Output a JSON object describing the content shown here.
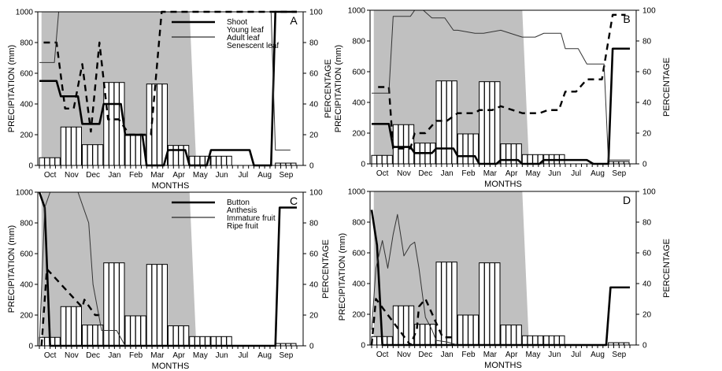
{
  "colors": {
    "shade": "#c0c0c0",
    "ink": "#000000",
    "bar_fill": "#ffffff"
  },
  "chart_data": [
    {
      "type": "bar+line",
      "panel": "A",
      "xlabel": "MONTHS",
      "ylabel_left": "PRECIPITATION (mm)",
      "ylabel_right": "PERCENTAGE",
      "ylabel_right_overlay": "PRECIPITATION (mm)",
      "ylim_left": [
        0,
        1000
      ],
      "ylim_right": [
        0,
        100
      ],
      "yticks_left": [
        "0",
        "200",
        "400",
        "600",
        "800",
        "1000"
      ],
      "yticks_right": [
        "0",
        "20",
        "40",
        "60",
        "80",
        "100"
      ],
      "months": [
        "Oct",
        "Nov",
        "Dec",
        "Jan",
        "Feb",
        "Mar",
        "Apr",
        "May",
        "Jun",
        "Jul",
        "Aug",
        "Sep"
      ],
      "precipitation": [
        50,
        250,
        135,
        540,
        195,
        530,
        130,
        60,
        60,
        0,
        0,
        15
      ],
      "rainy_season_shading": {
        "start": 0.1,
        "end": 7.0
      },
      "legend": [
        "Shoot",
        "Young leaf",
        "Adult leaf",
        "Senescent leaf"
      ],
      "legend_position": "top-right",
      "series": [
        {
          "name": "Shoot",
          "style": "thick",
          "x": [
            0,
            0.8,
            1.0,
            1.8,
            2.0,
            2.8,
            3.0,
            3.8,
            4.0,
            4.8,
            5.0,
            5.8,
            6.0,
            6.8,
            7.0,
            7.8,
            8.0,
            9.8,
            10.0,
            10.8,
            11.0,
            12.0
          ],
          "y": [
            55,
            55,
            45,
            45,
            27,
            27,
            40,
            40,
            20,
            20,
            0,
            0,
            10,
            10,
            0,
            0,
            10,
            10,
            0,
            0,
            100,
            100
          ]
        },
        {
          "name": "Young leaf",
          "style": "dashed",
          "x": [
            0.2,
            0.8,
            1.2,
            1.6,
            2.0,
            2.4,
            2.8,
            3.2,
            3.7,
            4.2,
            4.8,
            5.2,
            5.7,
            12.0
          ],
          "y": [
            80,
            80,
            37,
            37,
            66,
            22,
            80,
            30,
            30,
            20,
            20,
            20,
            100,
            100
          ]
        },
        {
          "name": "Adult leaf",
          "style": "thin",
          "x": [
            0,
            0.7,
            0.9,
            10.8,
            11.0,
            11.7
          ],
          "y": [
            67,
            67,
            100,
            100,
            10,
            10
          ]
        },
        {
          "name": "Senescent leaf",
          "style": "thin-gray",
          "x": [],
          "y": []
        }
      ]
    },
    {
      "type": "bar+line",
      "panel": "B",
      "xlabel": "MONTHS",
      "ylabel_right": "PERCENTAGE",
      "ylim_left": [
        0,
        1000
      ],
      "ylim_right": [
        0,
        100
      ],
      "yticks_left": [
        "0",
        "200",
        "400",
        "600",
        "800",
        "1000"
      ],
      "yticks_right": [
        "0",
        "20",
        "40",
        "60",
        "80",
        "100"
      ],
      "months": [
        "Oct",
        "Nov",
        "Dec",
        "Jan",
        "Feb",
        "Mar",
        "Apr",
        "May",
        "Jun",
        "Jul",
        "Aug",
        "Sep"
      ],
      "precipitation": [
        55,
        255,
        135,
        540,
        195,
        535,
        130,
        60,
        60,
        0,
        0,
        15
      ],
      "rainy_season_shading": {
        "start": 0.1,
        "end": 7.0
      },
      "series": [
        {
          "name": "Shoot",
          "style": "thick",
          "x": [
            0,
            0.8,
            1.0,
            1.8,
            2.0,
            2.8,
            3.0,
            3.8,
            4.0,
            4.8,
            5.0,
            5.8,
            6.0,
            6.8,
            7.0,
            7.8,
            8.0,
            10.0,
            10.3,
            11.0,
            11.2,
            12.0
          ],
          "y": [
            26,
            26,
            11,
            11,
            7,
            7,
            10,
            10,
            5,
            5,
            0,
            0,
            2.5,
            2.5,
            0,
            0,
            2.5,
            2.5,
            0,
            0,
            75,
            75
          ]
        },
        {
          "name": "Young leaf",
          "style": "dashed",
          "x": [
            0.3,
            0.8,
            1.0,
            1.8,
            2.0,
            2.5,
            3.0,
            3.5,
            4.0,
            4.8,
            5.0,
            5.6,
            6.0,
            7.0,
            7.8,
            8.2,
            8.7,
            9.0,
            9.5,
            10.0,
            10.7,
            11.2,
            11.8
          ],
          "y": [
            50,
            50,
            10,
            10,
            20,
            20,
            28,
            28,
            33,
            33,
            35,
            35,
            37.5,
            33,
            33,
            35,
            35,
            47,
            47,
            55,
            55,
            97,
            97
          ]
        },
        {
          "name": "Adult leaf",
          "style": "thin",
          "x": [
            0,
            0.8,
            1.0,
            1.8,
            2.0,
            2.4,
            2.8,
            3.4,
            3.8,
            4.0,
            4.8,
            5.2,
            6.0,
            7.0,
            7.6,
            8.0,
            8.8,
            9.0,
            9.6,
            10.0,
            10.8,
            11.0,
            12.0
          ],
          "y": [
            46,
            46,
            96,
            96,
            100,
            100,
            95,
            95,
            87,
            87,
            85,
            85,
            87,
            82.5,
            82.5,
            85,
            85,
            75,
            75,
            65,
            65,
            2.5,
            2.5
          ]
        }
      ],
      "panel_label": "B"
    },
    {
      "type": "bar+line",
      "panel": "C",
      "xlabel": "MONTHS",
      "ylabel_left": "PRECIPITATION (mm)",
      "ylabel_right": "PERCENTAGE",
      "ylabel_right_overlay": "PRECIPITATION (mm)",
      "ylim_left": [
        0,
        1000
      ],
      "ylim_right": [
        0,
        100
      ],
      "yticks_left": [
        "0",
        "200",
        "400",
        "600",
        "800",
        "1000"
      ],
      "yticks_right": [
        "0",
        "20",
        "40",
        "60",
        "80",
        "100"
      ],
      "months": [
        "Oct",
        "Nov",
        "Dec",
        "Jan",
        "Feb",
        "Mar",
        "Apr",
        "May",
        "Jun",
        "Jul",
        "Aug",
        "Sep"
      ],
      "precipitation": [
        55,
        255,
        135,
        540,
        195,
        530,
        130,
        60,
        60,
        0,
        0,
        15
      ],
      "rainy_season_shading": {
        "start": 0.1,
        "end": 7.0
      },
      "legend": [
        "Button",
        "Anthesis",
        "Immature fruit",
        "Ripe fruit"
      ],
      "legend_position": "top-right",
      "series": [
        {
          "name": "Button",
          "style": "thick",
          "x": [
            0,
            0.25,
            0.5,
            11.0,
            11.2,
            12.0
          ],
          "y": [
            100,
            90,
            0,
            0,
            90,
            90
          ]
        },
        {
          "name": "Anthesis",
          "style": "dashed",
          "x": [
            0.1,
            0.35,
            2.0,
            2.1,
            2.6,
            2.8
          ],
          "y": [
            0,
            50,
            25,
            30,
            20,
            20
          ]
        },
        {
          "name": "Immature fruit",
          "style": "thin",
          "x": [
            0,
            0.25,
            0.5,
            1.8,
            2.3,
            2.5,
            2.9,
            3.4,
            3.6,
            4.0
          ],
          "y": [
            0,
            90,
            100,
            100,
            80,
            40,
            10,
            10,
            10,
            0
          ]
        },
        {
          "name": "Ripe fruit",
          "style": "thin-gray",
          "x": [],
          "y": []
        }
      ],
      "panel_label": "C"
    },
    {
      "type": "bar+line",
      "panel": "D",
      "xlabel": "MONTHS",
      "ylabel_right": "PERCENTAGE",
      "ylim_left": [
        0,
        1000
      ],
      "ylim_right": [
        0,
        100
      ],
      "yticks_left": [
        "0",
        "200",
        "400",
        "600",
        "800",
        "1000"
      ],
      "yticks_right": [
        "0",
        "20",
        "40",
        "60",
        "80",
        "100"
      ],
      "months": [
        "Oct",
        "Nov",
        "Dec",
        "Jan",
        "Feb",
        "Mar",
        "Apr",
        "May",
        "Jun",
        "Jul",
        "Aug",
        "Sep"
      ],
      "precipitation": [
        55,
        255,
        135,
        540,
        195,
        535,
        130,
        60,
        60,
        0,
        0,
        15
      ],
      "rainy_season_shading": {
        "start": 0.1,
        "end": 7.0
      },
      "series": [
        {
          "name": "Button",
          "style": "thick",
          "x": [
            0,
            0.25,
            0.5,
            10.9,
            11.1,
            12.0
          ],
          "y": [
            88,
            65,
            0,
            0,
            37.5,
            37.5
          ]
        },
        {
          "name": "Anthesis",
          "style": "dashed",
          "x": [
            0.0,
            0.2,
            1.8,
            2.1,
            2.2,
            2.5,
            3.3,
            3.8
          ],
          "y": [
            0,
            30,
            0,
            10,
            25,
            30,
            5,
            5
          ]
        },
        {
          "name": "Immature fruit",
          "style": "thin",
          "x": [
            0,
            0.2,
            0.5,
            0.75,
            1.0,
            1.2,
            1.5,
            1.8,
            2.0,
            2.2,
            2.5,
            2.8,
            3.0,
            3.5,
            4.0
          ],
          "y": [
            10,
            50,
            68,
            50,
            72,
            85,
            58,
            65,
            67,
            50,
            18,
            10,
            3,
            2,
            0
          ]
        }
      ],
      "panel_label": "D"
    }
  ]
}
